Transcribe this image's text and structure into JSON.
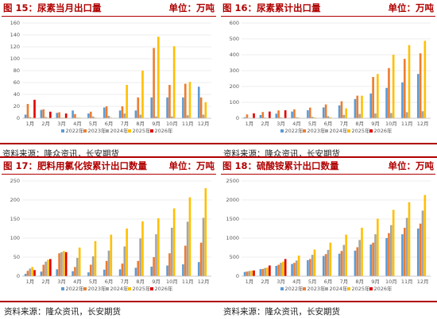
{
  "colors": {
    "series": [
      "#5b9bd5",
      "#ed7d31",
      "#a5a5a5",
      "#ffc000",
      "#e00000"
    ],
    "title": "#b00000"
  },
  "source_text": "资料来源：隆众资讯，长安期货",
  "panels": [
    {
      "title": "图 15：尿素当月出口量",
      "unit": "单位：万吨"
    },
    {
      "title": "图 16：尿素累计出口量",
      "unit": "单位：万吨"
    },
    {
      "title": "图 17：肥料用氯化铵累计出口数量",
      "unit": "单位：万吨"
    },
    {
      "title": "图 18：硫酸铵累计出口数量",
      "unit": "单位：万吨"
    }
  ],
  "chart_data": [
    {
      "type": "bar",
      "categories": [
        "1月",
        "2月",
        "3月",
        "4月",
        "5月",
        "6月",
        "7月",
        "8月",
        "9月",
        "10月",
        "11月",
        "12月"
      ],
      "ylim": [
        0,
        160
      ],
      "yticks": [
        0,
        20,
        40,
        60,
        80,
        100,
        120,
        140,
        160
      ],
      "series": [
        {
          "name": "2022年",
          "values": [
            6,
            14,
            9,
            13,
            8,
            18,
            13,
            13,
            35,
            35,
            35,
            53
          ]
        },
        {
          "name": "2023年",
          "values": [
            24,
            15,
            10,
            7,
            11,
            20,
            20,
            35,
            118,
            56,
            58,
            35
          ]
        },
        {
          "name": "2024年",
          "values": [
            2,
            2,
            1,
            1,
            3,
            4,
            8,
            6,
            3,
            3,
            5,
            6
          ]
        },
        {
          "name": "2025年",
          "values": [
            1,
            1,
            1,
            1,
            1,
            1,
            56,
            80,
            137,
            121,
            61,
            27
          ]
        },
        {
          "name": "2026年",
          "values": [
            31,
            11,
            8,
            null,
            null,
            null,
            null,
            null,
            null,
            null,
            null,
            null
          ]
        }
      ]
    },
    {
      "type": "bar",
      "categories": [
        "1月",
        "2月",
        "3月",
        "4月",
        "5月",
        "6月",
        "7月",
        "8月",
        "9月",
        "10月",
        "11月",
        "12月"
      ],
      "ylim": [
        0,
        600
      ],
      "yticks": [
        0,
        100,
        200,
        300,
        400,
        500,
        600
      ],
      "series": [
        {
          "name": "2022年",
          "values": [
            6,
            20,
            29,
            42,
            50,
            68,
            81,
            121,
            156,
            191,
            226,
            279
          ]
        },
        {
          "name": "2023年",
          "values": [
            24,
            39,
            49,
            56,
            67,
            87,
            107,
            142,
            260,
            316,
            374,
            409
          ]
        },
        {
          "name": "2024年",
          "values": [
            2,
            4,
            5,
            6,
            9,
            13,
            21,
            27,
            30,
            33,
            38,
            44
          ]
        },
        {
          "name": "2025年",
          "values": [
            1,
            2,
            3,
            4,
            5,
            6,
            62,
            142,
            279,
            400,
            461,
            488
          ]
        },
        {
          "name": "2026年",
          "values": [
            31,
            42,
            50,
            null,
            null,
            null,
            null,
            null,
            null,
            null,
            null,
            null
          ]
        }
      ]
    },
    {
      "type": "bar",
      "categories": [
        "1月",
        "2月",
        "3月",
        "4月",
        "5月",
        "6月",
        "7月",
        "8月",
        "9月",
        "10月",
        "11月",
        "12月"
      ],
      "ylim": [
        0,
        250
      ],
      "yticks": [
        0,
        50,
        100,
        150,
        200,
        250
      ],
      "series": [
        {
          "name": "2022年",
          "values": [
            6,
            12,
            18,
            13,
            10,
            17,
            18,
            22,
            25,
            28,
            31,
            37
          ]
        },
        {
          "name": "2023年",
          "values": [
            14,
            30,
            60,
            24,
            30,
            40,
            33,
            40,
            50,
            60,
            80,
            88
          ]
        },
        {
          "name": "2024年",
          "values": [
            20,
            38,
            63,
            48,
            52,
            67,
            78,
            99,
            110,
            127,
            143,
            153
          ]
        },
        {
          "name": "2025年",
          "values": [
            24,
            43,
            66,
            75,
            92,
            109,
            125,
            144,
            152,
            178,
            207,
            231
          ]
        },
        {
          "name": "2026年",
          "values": [
            16,
            45,
            63,
            null,
            null,
            null,
            null,
            null,
            null,
            null,
            null,
            null
          ]
        }
      ]
    },
    {
      "type": "bar",
      "categories": [
        "1月",
        "2月",
        "3月",
        "4月",
        "5月",
        "6月",
        "7月",
        "8月",
        "9月",
        "10月",
        "11月",
        "12月"
      ],
      "ylim": [
        0,
        2500
      ],
      "yticks": [
        0,
        500,
        1000,
        1500,
        2000,
        2500
      ],
      "series": [
        {
          "name": "2022年",
          "values": [
            110,
            185,
            270,
            320,
            420,
            530,
            590,
            670,
            830,
            1000,
            1100,
            1250
          ]
        },
        {
          "name": "2023年",
          "values": [
            120,
            190,
            300,
            350,
            450,
            580,
            660,
            760,
            880,
            1130,
            1270,
            1380
          ]
        },
        {
          "name": "2024年",
          "values": [
            135,
            215,
            350,
            410,
            560,
            690,
            820,
            950,
            1100,
            1340,
            1530,
            1720
          ]
        },
        {
          "name": "2025年",
          "values": [
            145,
            225,
            380,
            540,
            700,
            880,
            1090,
            1270,
            1510,
            1740,
            1940,
            2130
          ]
        },
        {
          "name": "2026年",
          "values": [
            150,
            280,
            450,
            null,
            null,
            null,
            null,
            null,
            null,
            null,
            null,
            null
          ]
        }
      ]
    }
  ]
}
